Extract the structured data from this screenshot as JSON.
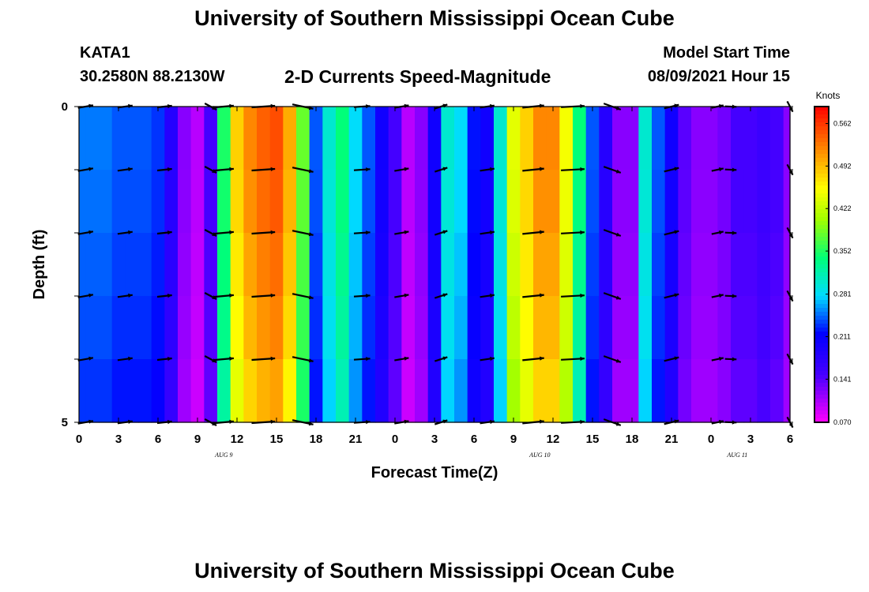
{
  "header": {
    "title": "University of Southern Mississippi Ocean Cube",
    "station_id": "KATA1",
    "station_coords": "30.2580N  88.2130W",
    "subtitle": "2-D Currents Speed-Magnitude",
    "model_start_label": "Model Start Time",
    "model_start_value": "08/09/2021 Hour 15"
  },
  "footer": {
    "title": "University of Southern Mississippi Ocean Cube"
  },
  "colors": {
    "background": "#ffffff",
    "text": "#000000",
    "arrow": "#000000"
  },
  "chart_data": {
    "type": "heatmap",
    "title": "2-D Currents Speed-Magnitude",
    "xlabel": "Forecast Time(Z)",
    "ylabel": "Depth (ft)",
    "xlim": [
      0,
      54
    ],
    "ylim": [
      0,
      5
    ],
    "x_tick_labels": [
      "0",
      "3",
      "6",
      "9",
      "12",
      "15",
      "18",
      "21",
      "0",
      "3",
      "6",
      "9",
      "12",
      "15",
      "18",
      "21",
      "0",
      "3",
      "6"
    ],
    "y_tick_labels": [
      "0",
      "5"
    ],
    "date_labels": [
      {
        "text": "AUG 9",
        "hour": 11
      },
      {
        "text": "AUG 10",
        "hour": 35
      },
      {
        "text": "AUG 11",
        "hour": 50
      }
    ],
    "colorbar": {
      "label": "Knots",
      "ticks": [
        "0.562",
        "0.492",
        "0.422",
        "0.352",
        "0.281",
        "0.211",
        "0.141",
        "0.070"
      ],
      "min": 0.07,
      "max": 0.59
    },
    "hours": [
      0,
      1,
      2,
      3,
      4,
      5,
      6,
      7,
      8,
      9,
      10,
      11,
      12,
      13,
      14,
      15,
      16,
      17,
      18,
      19,
      20,
      21,
      22,
      23,
      24,
      25,
      26,
      27,
      28,
      29,
      30,
      31,
      32,
      33,
      34,
      35,
      36,
      37,
      38,
      39,
      40,
      41,
      42,
      43,
      44,
      45,
      46,
      47,
      48,
      49,
      50,
      51,
      52,
      53,
      54
    ],
    "depths": [
      0,
      1,
      2,
      3,
      4,
      5
    ],
    "speed_profile": [
      0.25,
      0.25,
      0.25,
      0.24,
      0.24,
      0.24,
      0.23,
      0.18,
      0.12,
      0.1,
      0.15,
      0.35,
      0.48,
      0.52,
      0.54,
      0.55,
      0.5,
      0.38,
      0.24,
      0.3,
      0.34,
      0.28,
      0.24,
      0.2,
      0.15,
      0.1,
      0.12,
      0.2,
      0.3,
      0.28,
      0.22,
      0.2,
      0.3,
      0.44,
      0.48,
      0.52,
      0.52,
      0.45,
      0.34,
      0.24,
      0.18,
      0.12,
      0.12,
      0.3,
      0.24,
      0.2,
      0.14,
      0.12,
      0.12,
      0.13,
      0.15,
      0.15,
      0.16,
      0.15,
      0.12
    ],
    "depth_factor": [
      1.0,
      0.99,
      0.97,
      0.95,
      0.92
    ],
    "vectors": [
      {
        "hour": 0.5,
        "angle_deg": -10,
        "speed": 0.25
      },
      {
        "hour": 3.5,
        "angle_deg": -8,
        "speed": 0.24
      },
      {
        "hour": 6.5,
        "angle_deg": -6,
        "speed": 0.23
      },
      {
        "hour": 10,
        "angle_deg": 28,
        "speed": 0.18
      },
      {
        "hour": 11,
        "angle_deg": -5,
        "speed": 0.4
      },
      {
        "hour": 14,
        "angle_deg": -4,
        "speed": 0.52
      },
      {
        "hour": 17,
        "angle_deg": 12,
        "speed": 0.45
      },
      {
        "hour": 21.5,
        "angle_deg": -4,
        "speed": 0.28
      },
      {
        "hour": 24.5,
        "angle_deg": -10,
        "speed": 0.22
      },
      {
        "hour": 27.5,
        "angle_deg": -18,
        "speed": 0.18
      },
      {
        "hour": 31,
        "angle_deg": -8,
        "speed": 0.22
      },
      {
        "hour": 34.5,
        "angle_deg": -6,
        "speed": 0.46
      },
      {
        "hour": 37.5,
        "angle_deg": -3,
        "speed": 0.52
      },
      {
        "hour": 40.5,
        "angle_deg": 20,
        "speed": 0.34
      },
      {
        "hour": 45,
        "angle_deg": -14,
        "speed": 0.24
      },
      {
        "hour": 48.5,
        "angle_deg": -12,
        "speed": 0.14
      },
      {
        "hour": 49.5,
        "angle_deg": 2,
        "speed": 0.12
      },
      {
        "hour": 54,
        "angle_deg": 62,
        "speed": 0.13
      }
    ]
  }
}
